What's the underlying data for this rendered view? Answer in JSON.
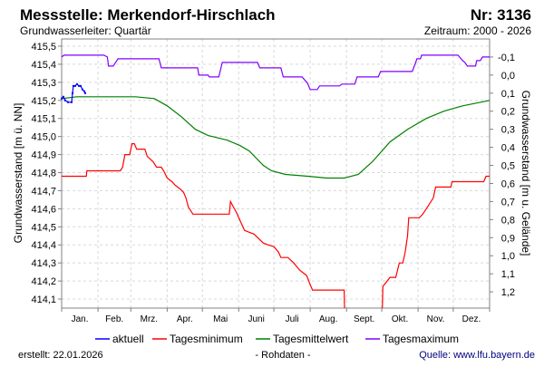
{
  "header": {
    "title": "Messstelle: Merkendorf-Hirschlach",
    "number": "Nr: 3136",
    "aquifer": "Grundwasserleiter: Quartär",
    "period": "Zeitraum: 2000 - 2026"
  },
  "footer": {
    "created": "erstellt:  22.01.2026",
    "raw": "- Rohdaten -",
    "source": "Quelle: www.lfu.bayern.de"
  },
  "chart_data": {
    "type": "line",
    "ylabel": "Grundwasserstand [m ü. NN]",
    "ylabel_right": "Grundwasserstand [m u. Gelände]",
    "xlabel": "",
    "x_unit": "day of year",
    "ylim": [
      414.05,
      415.54
    ],
    "ground_level": 415.34,
    "grid": true,
    "legend_placement": "bottom",
    "x_ticks": [
      "Jan.",
      "Feb.",
      "Mrz.",
      "Apr.",
      "Mai",
      "Juni",
      "Juli",
      "Aug.",
      "Sept.",
      "Okt.",
      "Nov.",
      "Dez."
    ],
    "y_ticks": [
      "414,1",
      "414,2",
      "414,3",
      "414,4",
      "414,5",
      "414,6",
      "414,7",
      "414,8",
      "414,9",
      "415,0",
      "415,1",
      "415,2",
      "415,3",
      "415,4",
      "415,5"
    ],
    "y_ticks_right": [
      "-0,1",
      "0,0",
      "0,1",
      "0,2",
      "0,3",
      "0,4",
      "0,5",
      "0,6",
      "0,7",
      "0,8",
      "0,9",
      "1,0",
      "1,1",
      "1,2"
    ],
    "series": [
      {
        "name": "aktuell",
        "color": "#0000ff",
        "step": false,
        "points": [
          [
            0,
            415.21
          ],
          [
            1.5,
            415.22
          ],
          [
            3,
            415.2
          ],
          [
            5.4,
            415.19
          ],
          [
            8.5,
            415.19
          ],
          [
            9.3,
            415.24
          ],
          [
            10,
            415.28
          ],
          [
            11.6,
            415.28
          ],
          [
            13.1,
            415.29
          ],
          [
            14.7,
            415.28
          ],
          [
            16.2,
            415.28
          ],
          [
            17.8,
            415.26
          ],
          [
            19.3,
            415.25
          ],
          [
            20.1,
            415.24
          ]
        ]
      },
      {
        "name": "Tagesminimum",
        "color": "#ff0000",
        "step": false,
        "points": [
          [
            0,
            414.78
          ],
          [
            21,
            414.78
          ],
          [
            21.5,
            414.81
          ],
          [
            50,
            414.81
          ],
          [
            52,
            414.83
          ],
          [
            54,
            414.9
          ],
          [
            58,
            414.9
          ],
          [
            60,
            414.96
          ],
          [
            62,
            414.96
          ],
          [
            64,
            414.93
          ],
          [
            71,
            414.93
          ],
          [
            73,
            414.89
          ],
          [
            78,
            414.86
          ],
          [
            81,
            414.83
          ],
          [
            85,
            414.83
          ],
          [
            87,
            414.81
          ],
          [
            90,
            414.77
          ],
          [
            94,
            414.75
          ],
          [
            97,
            414.73
          ],
          [
            101,
            414.71
          ],
          [
            104,
            414.69
          ],
          [
            106,
            414.66
          ],
          [
            108,
            414.61
          ],
          [
            112,
            414.57
          ],
          [
            143,
            414.57
          ],
          [
            144,
            414.64
          ],
          [
            149,
            414.58
          ],
          [
            156,
            414.48
          ],
          [
            160,
            414.47
          ],
          [
            164,
            414.46
          ],
          [
            172,
            414.41
          ],
          [
            176,
            414.4
          ],
          [
            181,
            414.39
          ],
          [
            185,
            414.36
          ],
          [
            187,
            414.33
          ],
          [
            193,
            414.33
          ],
          [
            198,
            414.3
          ],
          [
            203,
            414.26
          ],
          [
            207,
            414.24
          ],
          [
            209,
            414.23
          ],
          [
            212,
            414.18
          ],
          [
            214,
            414.15
          ],
          [
            241,
            414.15
          ],
          [
            241.3,
            414.05
          ],
          null,
          [
            273.5,
            414.05
          ],
          [
            274,
            414.17
          ],
          [
            280,
            414.22
          ],
          [
            285,
            414.22
          ],
          [
            288,
            414.3
          ],
          [
            291,
            414.3
          ],
          [
            293,
            414.36
          ],
          [
            295,
            414.45
          ],
          [
            296,
            414.55
          ],
          [
            305,
            414.55
          ],
          [
            308,
            414.57
          ],
          [
            313,
            414.62
          ],
          [
            317,
            414.66
          ],
          [
            319,
            414.72
          ],
          [
            332,
            414.72
          ],
          [
            333,
            414.75
          ],
          [
            360,
            414.75
          ],
          [
            362,
            414.78
          ],
          [
            365,
            414.78
          ]
        ]
      },
      {
        "name": "Tagesmittelwert",
        "color": "#008000",
        "step": false,
        "points": [
          [
            0,
            415.21
          ],
          [
            13,
            415.22
          ],
          [
            63,
            415.22
          ],
          [
            79,
            415.21
          ],
          [
            90,
            415.17
          ],
          [
            102,
            415.11
          ],
          [
            114,
            415.04
          ],
          [
            125,
            415.005
          ],
          [
            141,
            414.98
          ],
          [
            152,
            414.95
          ],
          [
            160,
            414.92
          ],
          [
            172,
            414.84
          ],
          [
            179,
            414.81
          ],
          [
            191,
            414.79
          ],
          [
            210,
            414.78
          ],
          [
            226,
            414.77
          ],
          [
            241,
            414.77
          ],
          [
            253,
            414.79
          ],
          [
            265,
            414.86
          ],
          [
            280,
            414.97
          ],
          [
            295,
            415.04
          ],
          [
            311,
            415.1
          ],
          [
            326,
            415.14
          ],
          [
            342,
            415.17
          ],
          [
            365,
            415.2
          ]
        ]
      },
      {
        "name": "Tagesmaximum",
        "color": "#8000ff",
        "step": false,
        "points": [
          [
            0,
            415.44
          ],
          [
            2,
            415.45
          ],
          [
            36,
            415.45
          ],
          [
            39,
            415.44
          ],
          [
            40,
            415.39
          ],
          [
            44,
            415.39
          ],
          [
            48,
            415.43
          ],
          [
            83,
            415.43
          ],
          [
            85,
            415.38
          ],
          [
            116,
            415.38
          ],
          [
            117,
            415.34
          ],
          [
            125,
            415.34
          ],
          [
            126,
            415.33
          ],
          [
            134,
            415.33
          ],
          [
            137,
            415.41
          ],
          [
            167,
            415.41
          ],
          [
            169,
            415.38
          ],
          [
            187,
            415.38
          ],
          [
            189,
            415.33
          ],
          [
            205,
            415.33
          ],
          [
            209,
            415.3
          ],
          [
            210,
            415.29
          ],
          [
            212,
            415.26
          ],
          [
            218,
            415.26
          ],
          [
            220,
            415.28
          ],
          [
            237,
            415.28
          ],
          [
            239,
            415.29
          ],
          [
            250,
            415.29
          ],
          [
            252,
            415.33
          ],
          [
            270,
            415.33
          ],
          [
            272,
            415.36
          ],
          [
            299,
            415.36
          ],
          [
            302,
            415.41
          ],
          [
            303,
            415.43
          ],
          [
            306,
            415.43
          ],
          [
            307,
            415.45
          ],
          [
            338,
            415.45
          ],
          [
            342,
            415.42
          ],
          [
            344,
            415.41
          ],
          [
            346,
            415.39
          ],
          [
            353,
            415.39
          ],
          [
            354,
            415.42
          ],
          [
            357,
            415.42
          ],
          [
            359,
            415.44
          ],
          [
            365,
            415.44
          ]
        ]
      }
    ]
  }
}
